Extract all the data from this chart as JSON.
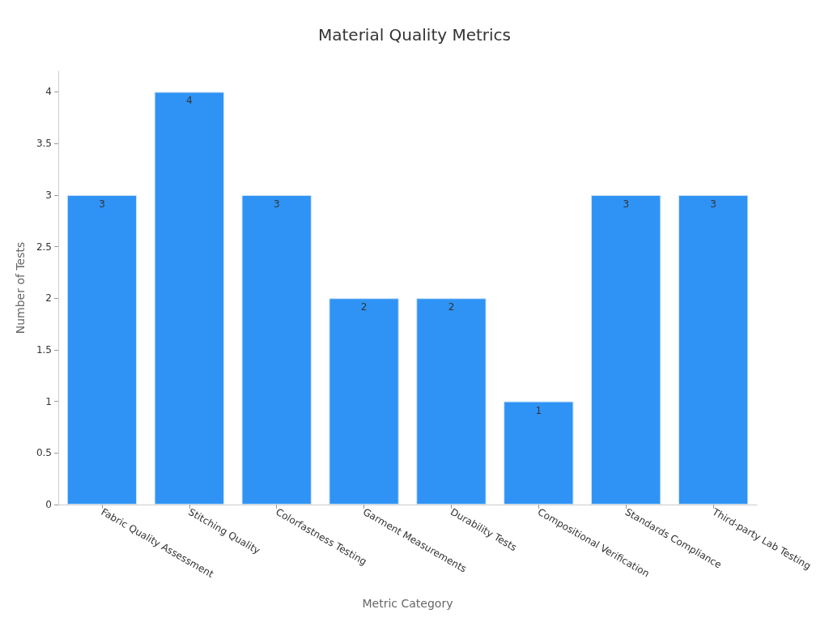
{
  "chart_data": {
    "type": "bar",
    "title": "Material Quality Metrics",
    "xlabel": "Metric Category",
    "ylabel": "Number of Tests",
    "categories": [
      "Fabric Quality Assessment",
      "Stitching Quality",
      "Colorfastness Testing",
      "Garment Measurements",
      "Durability Tests",
      "Compositional Verification",
      "Standards Compliance",
      "Third-party Lab Testing"
    ],
    "values": [
      3,
      4,
      3,
      2,
      2,
      1,
      3,
      3
    ],
    "color": "#2f93f5",
    "ylim": [
      0,
      4.2
    ],
    "yticks": [
      0,
      0.5,
      1,
      1.5,
      2,
      2.5,
      3,
      3.5,
      4
    ],
    "grid": false,
    "data_labels": true
  }
}
